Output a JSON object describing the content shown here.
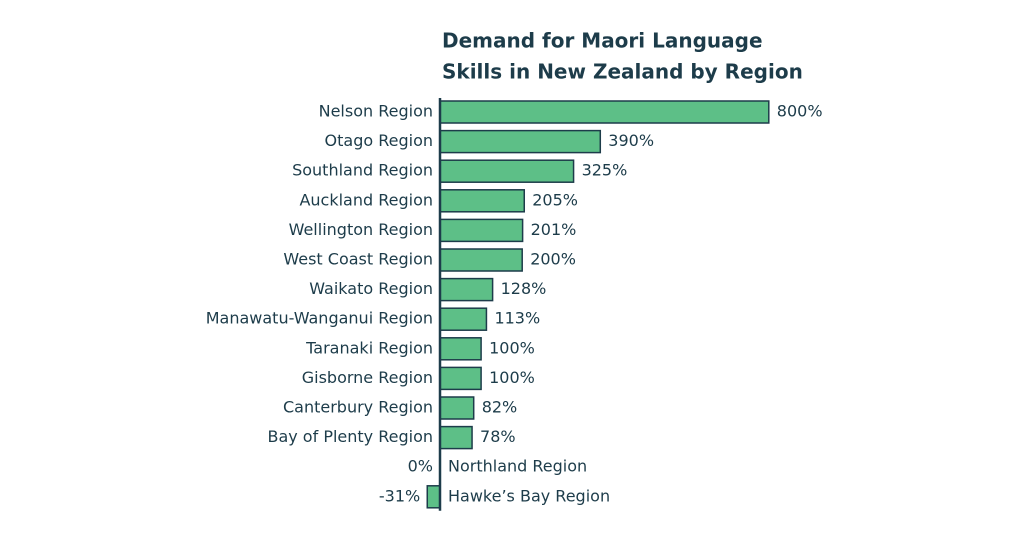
{
  "chart_data": {
    "type": "bar",
    "orientation": "horizontal",
    "title": [
      "Demand for Maori Language",
      "Skills in New Zealand by Region"
    ],
    "categories": [
      "Nelson Region",
      "Otago Region",
      "Southland Region",
      "Auckland Region",
      "Wellington Region",
      "West Coast Region",
      "Waikato Region",
      "Manawatu-Wanganui Region",
      "Taranaki Region",
      "Gisborne Region",
      "Canterbury Region",
      "Bay of Plenty Region",
      "Northland Region",
      "Hawke’s Bay Region"
    ],
    "values": [
      800,
      390,
      325,
      205,
      201,
      200,
      128,
      113,
      100,
      100,
      82,
      78,
      0,
      -31
    ],
    "value_labels": [
      "800%",
      "390%",
      "325%",
      "205%",
      "201%",
      "200%",
      "128%",
      "113%",
      "100%",
      "100%",
      "82%",
      "78%",
      "0%",
      "-31%"
    ],
    "color": "#5dbf87"
  }
}
